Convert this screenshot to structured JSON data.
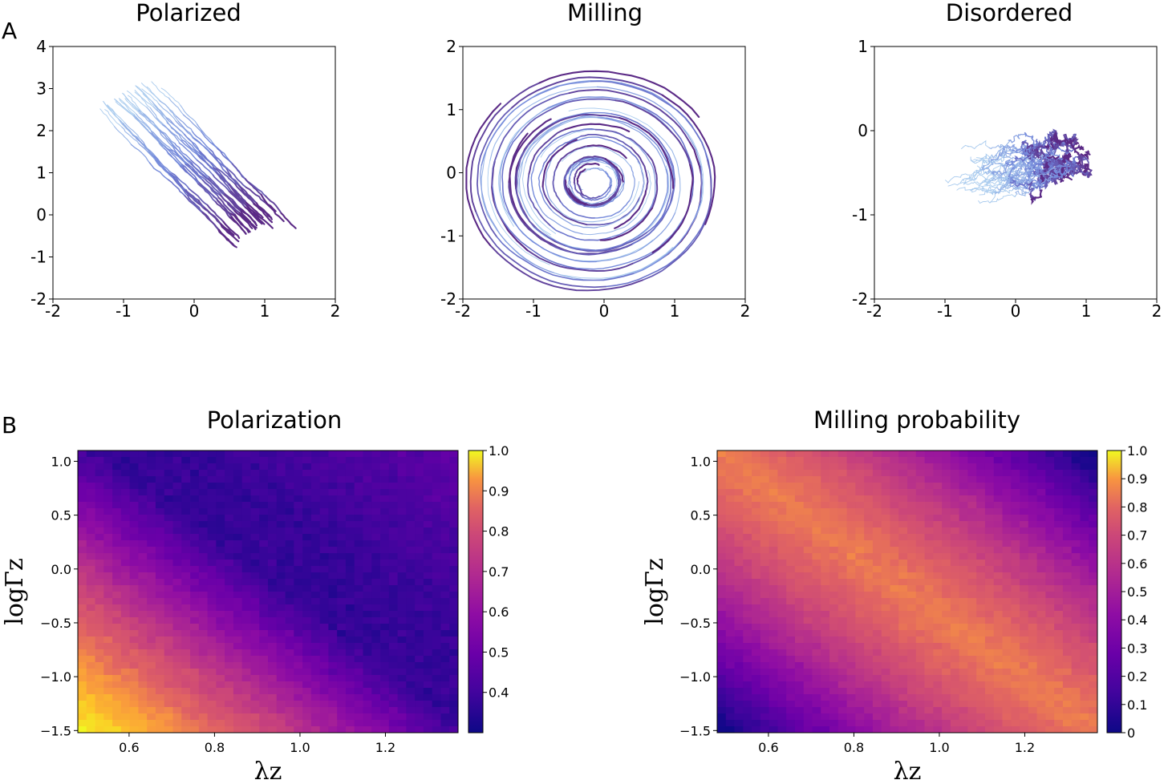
{
  "panels": [
    {
      "label": "A"
    },
    {
      "label": "B"
    }
  ],
  "colors": {
    "trajectory_start": "#a9cbee",
    "trajectory_mid": "#6f82d8",
    "trajectory_end": "#5b2a86",
    "colormap": "plasma-like"
  },
  "chart_data": [
    {
      "type": "line",
      "title": "Polarized",
      "xlim": [
        -2,
        2
      ],
      "ylim": [
        -2,
        4
      ],
      "xticks": [
        "-2",
        "-1",
        "0",
        "1",
        "2"
      ],
      "yticks": [
        "-2",
        "-1",
        "0",
        "1",
        "2",
        "3",
        "4"
      ],
      "pattern": "drift",
      "n_tracks": 26,
      "start_center": [
        -1.0,
        2.8
      ],
      "end_center": [
        1.0,
        -0.6
      ],
      "spread": 0.28,
      "grid": false
    },
    {
      "type": "line",
      "title": "Milling",
      "xlim": [
        -2,
        2
      ],
      "ylim": [
        -2,
        2
      ],
      "xticks": [
        "-2",
        "-1",
        "0",
        "1",
        "2"
      ],
      "yticks": [
        "-2",
        "-1",
        "0",
        "1",
        "2"
      ],
      "pattern": "spiral",
      "n_tracks": 22,
      "center": [
        -0.15,
        -0.15
      ],
      "radius_range": [
        0.2,
        1.7
      ],
      "grid": false
    },
    {
      "type": "line",
      "title": "Disordered",
      "xlim": [
        -2,
        2
      ],
      "ylim": [
        -2,
        1
      ],
      "xticks": [
        "-2",
        "-1",
        "0",
        "1",
        "2"
      ],
      "yticks": [
        "-2",
        "-1",
        "0",
        "1"
      ],
      "pattern": "diffuse",
      "n_tracks": 30,
      "start_center": [
        -0.6,
        -0.6
      ],
      "end_center": [
        0.8,
        -0.3
      ],
      "grid": false
    },
    {
      "type": "heatmap",
      "title": "Polarization",
      "xlabel": "λz",
      "ylabel": "logΓz",
      "xlim": [
        0.48,
        1.37
      ],
      "ylim": [
        -1.52,
        1.1
      ],
      "xticks": [
        "0.6",
        "0.8",
        "1.0",
        "1.2"
      ],
      "yticks": [
        "1.0",
        "0.5",
        "0.0",
        "−0.5",
        "−1.0",
        "−1.5"
      ],
      "grid_size": [
        44,
        44
      ],
      "value_range": [
        0.3,
        1.0
      ],
      "corner_values": {
        "bottom_left": 0.98,
        "bottom_right": 0.5,
        "top_left": 0.55,
        "top_right": 0.42
      },
      "colorbar_ticks": [
        "1.0",
        "0.9",
        "0.8",
        "0.7",
        "0.6",
        "0.5",
        "0.4"
      ]
    },
    {
      "type": "heatmap",
      "title": "Milling probability",
      "xlabel": "λz",
      "ylabel": "logΓz",
      "xlim": [
        0.48,
        1.37
      ],
      "ylim": [
        -1.52,
        1.1
      ],
      "xticks": [
        "0.6",
        "0.8",
        "1.0",
        "1.2"
      ],
      "yticks": [
        "1.0",
        "0.5",
        "0.0",
        "−0.5",
        "−1.0",
        "−1.5"
      ],
      "grid_size": [
        44,
        44
      ],
      "value_range": [
        0.0,
        1.0
      ],
      "corner_values": {
        "bottom_left": 0.05,
        "bottom_right": 0.7,
        "top_left": 0.7,
        "top_right": 0.05
      },
      "colorbar_ticks": [
        "1.0",
        "0.9",
        "0.8",
        "0.7",
        "0.6",
        "0.5",
        "0.4",
        "0.3",
        "0.2",
        "0.1",
        "0"
      ]
    }
  ]
}
